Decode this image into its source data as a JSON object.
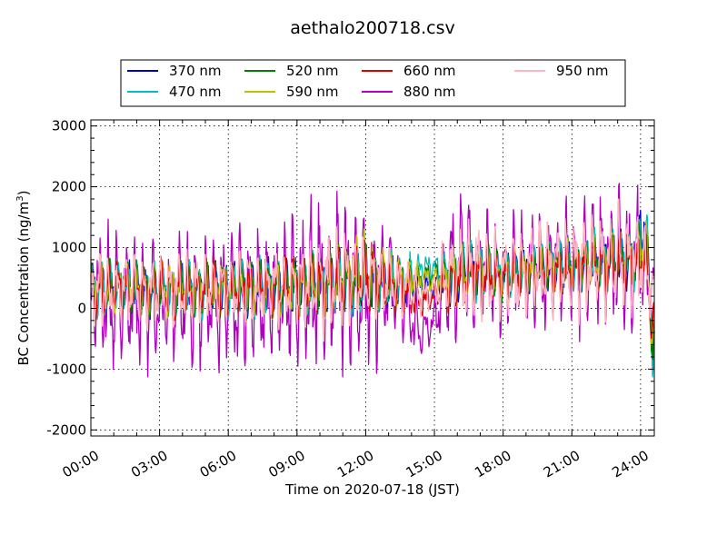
{
  "chart_data": {
    "type": "line",
    "title": "aethalo200718.csv",
    "xlabel": "Time on 2020-07-18 (JST)",
    "ylabel": "BC Concentration (ng/m",
    "ylabel_sup": "3",
    "ylabel_close": ")",
    "xlim": [
      "00:00",
      "24:00"
    ],
    "xlim_hours": [
      0,
      24.6
    ],
    "ylim": [
      -2100,
      3100
    ],
    "x_ticks": [
      "00:00",
      "03:00",
      "06:00",
      "09:00",
      "12:00",
      "15:00",
      "18:00",
      "21:00",
      "24:00"
    ],
    "y_ticks": [
      -2000,
      -1000,
      0,
      1000,
      2000,
      3000
    ],
    "grid": true,
    "legend_position": "top-center",
    "series": [
      {
        "name": "370 nm",
        "color": "#0000cc",
        "x": [
          0,
          1.5,
          3,
          4.5,
          6,
          7.5,
          9,
          10.5,
          12,
          13.2,
          14.4,
          15,
          15.6,
          16.5,
          18,
          19.5,
          21,
          22.5,
          23.8,
          24.2,
          24.5
        ],
        "y": [
          300,
          350,
          300,
          330,
          320,
          350,
          380,
          420,
          450,
          400,
          350,
          380,
          500,
          650,
          550,
          650,
          700,
          800,
          800,
          1500,
          -300
        ],
        "amp": [
          520,
          480,
          450,
          470,
          480,
          500,
          520,
          560,
          600,
          500,
          300,
          200,
          450,
          500,
          400,
          420,
          450,
          480,
          500,
          700,
          600
        ]
      },
      {
        "name": "470 nm",
        "color": "#00bfbf",
        "x": [
          0,
          1.5,
          3,
          4.5,
          6,
          7.5,
          9,
          10.5,
          12,
          13.2,
          14.4,
          15,
          15.6,
          16.5,
          18,
          19.5,
          21,
          22.5,
          23.8,
          24.2,
          24.5
        ],
        "y": [
          300,
          350,
          300,
          330,
          320,
          350,
          380,
          420,
          450,
          420,
          650,
          700,
          550,
          650,
          560,
          660,
          720,
          820,
          820,
          1600,
          -500
        ],
        "amp": [
          540,
          500,
          470,
          490,
          500,
          520,
          540,
          580,
          620,
          520,
          300,
          200,
          470,
          520,
          420,
          440,
          470,
          500,
          520,
          800,
          700
        ]
      },
      {
        "name": "520 nm",
        "color": "#008000",
        "x": [
          0,
          1.5,
          3,
          4.5,
          6,
          7.5,
          9,
          10.5,
          12,
          13.2,
          14.4,
          15,
          15.6,
          16.5,
          18,
          19.5,
          21,
          22.5,
          23.8,
          24.2,
          24.5
        ],
        "y": [
          300,
          340,
          300,
          320,
          320,
          340,
          370,
          410,
          500,
          430,
          500,
          550,
          520,
          620,
          540,
          640,
          690,
          780,
          790,
          1200,
          -400
        ],
        "amp": [
          530,
          490,
          460,
          480,
          490,
          510,
          530,
          570,
          620,
          510,
          300,
          200,
          460,
          510,
          410,
          430,
          460,
          490,
          510,
          700,
          600
        ]
      },
      {
        "name": "590 nm",
        "color": "#bfbf00",
        "x": [
          0,
          1.5,
          3,
          4.5,
          6,
          7.5,
          9,
          10.5,
          12,
          13.2,
          14.4,
          15,
          15.6,
          16.5,
          18,
          19.5,
          21,
          22.5,
          23.8,
          24.2,
          24.5
        ],
        "y": [
          300,
          340,
          300,
          320,
          320,
          340,
          370,
          410,
          650,
          450,
          450,
          500,
          500,
          610,
          530,
          630,
          680,
          770,
          780,
          1100,
          -300
        ],
        "amp": [
          530,
          490,
          460,
          480,
          490,
          510,
          530,
          570,
          650,
          520,
          300,
          200,
          460,
          510,
          410,
          430,
          460,
          490,
          510,
          650,
          550
        ]
      },
      {
        "name": "660 nm",
        "color": "#e00000",
        "x": [
          0,
          1.5,
          3,
          4.5,
          6,
          7.5,
          9,
          10.5,
          12,
          13.2,
          14.4,
          15,
          15.6,
          16.5,
          18,
          19.5,
          21,
          22.5,
          23.8,
          24.2,
          24.5
        ],
        "y": [
          300,
          340,
          300,
          320,
          320,
          340,
          370,
          410,
          550,
          400,
          100,
          200,
          400,
          580,
          510,
          610,
          660,
          750,
          760,
          900,
          -300
        ],
        "amp": [
          540,
          500,
          470,
          490,
          500,
          520,
          540,
          580,
          640,
          520,
          300,
          200,
          470,
          520,
          420,
          440,
          470,
          500,
          520,
          600,
          500
        ]
      },
      {
        "name": "880 nm",
        "color": "#b000c0",
        "x": [
          0,
          1.5,
          3,
          4.5,
          6,
          7.5,
          9,
          10.5,
          12,
          13.2,
          14.4,
          15,
          15.6,
          16.5,
          18,
          19.5,
          21,
          22.5,
          23.8,
          24.2,
          24.5
        ],
        "y": [
          200,
          150,
          120,
          200,
          180,
          220,
          260,
          400,
          380,
          400,
          -400,
          -200,
          600,
          700,
          500,
          650,
          700,
          800,
          800,
          600,
          300
        ],
        "amp": [
          1300,
          1200,
          1150,
          1200,
          1250,
          1300,
          1400,
          1600,
          1500,
          1100,
          400,
          400,
          1200,
          1300,
          1000,
          1100,
          1150,
          1200,
          1300,
          900,
          600
        ]
      },
      {
        "name": "950 nm",
        "color": "#ffb6c1",
        "x": [
          0,
          1.5,
          3,
          4.5,
          6,
          7.5,
          9,
          10.5,
          12,
          13.2,
          14.4,
          15,
          15.6,
          16.5,
          18,
          19.5,
          21,
          22.5,
          23.8,
          24.2,
          24.5
        ],
        "y": [
          300,
          330,
          300,
          320,
          320,
          340,
          380,
          430,
          450,
          420,
          200,
          300,
          550,
          650,
          550,
          650,
          700,
          800,
          800,
          700,
          300
        ],
        "amp": [
          700,
          650,
          620,
          640,
          650,
          680,
          720,
          900,
          850,
          650,
          350,
          300,
          900,
          950,
          750,
          850,
          900,
          950,
          1000,
          800,
          500
        ]
      }
    ]
  }
}
